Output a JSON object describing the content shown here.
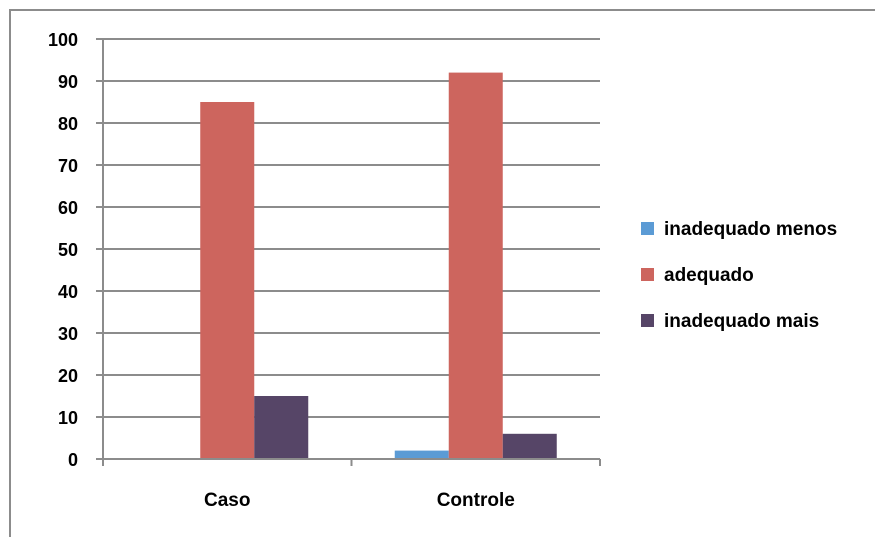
{
  "chart_data": {
    "type": "bar",
    "categories": [
      "Caso",
      "Controle"
    ],
    "series": [
      {
        "name": "inadequado menos",
        "values": [
          0,
          2
        ],
        "color": "#5b9bd5"
      },
      {
        "name": "adequado",
        "values": [
          85,
          92
        ],
        "color": "#cd655e"
      },
      {
        "name": "inadequado mais",
        "values": [
          15,
          6
        ],
        "color": "#564567"
      }
    ],
    "ylim": [
      0,
      100
    ],
    "yticks": [
      0,
      10,
      20,
      30,
      40,
      50,
      60,
      70,
      80,
      90,
      100
    ],
    "grid": true,
    "legend_position": "right",
    "title": "",
    "xlabel": "",
    "ylabel": ""
  }
}
